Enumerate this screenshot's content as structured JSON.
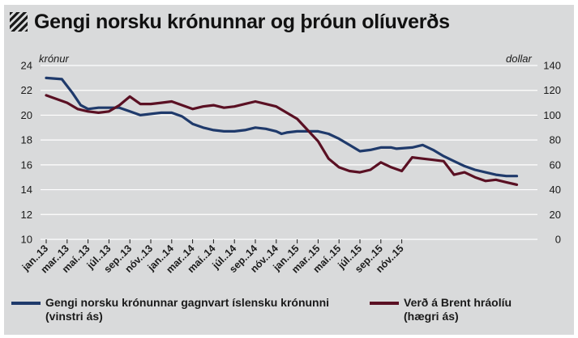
{
  "title": "Gengi norsku krónunnar og þróun olíuverðs",
  "colors": {
    "nok": "#1f3a6b",
    "brent": "#5a1023",
    "background": "#d9dadb",
    "grid": "#ffffff"
  },
  "chart_data": {
    "type": "line",
    "title": "Gengi norsku krónunnar og þróun olíuverðs",
    "left_axis_label": "krónur",
    "right_axis_label": "dollar",
    "left_ylim": [
      10,
      24
    ],
    "right_ylim": [
      0,
      140
    ],
    "left_ticks": [
      "10",
      "12",
      "14",
      "16",
      "18",
      "20",
      "22",
      "24"
    ],
    "right_ticks": [
      "0",
      "20",
      "40",
      "60",
      "80",
      "100",
      "120",
      "140"
    ],
    "grid": true,
    "x_tick_labels": [
      "jan..13",
      "mar..13",
      "maí..13",
      "júl..13",
      "sep..13",
      "nóv..13",
      "jan..14",
      "mar..14",
      "maí..14",
      "júl..14",
      "sep..14",
      "nóv..14",
      "jan..15",
      "mar..15",
      "maí..15",
      "júl..15",
      "sep..15",
      "nóv..15"
    ],
    "series": [
      {
        "name": "Gengi norsku krónunnar gagnvart íslensku krónunni (vinstri ás)",
        "axis": "left",
        "color": "#1f3a6b",
        "points": [
          [
            0,
            23.0
          ],
          [
            1.5,
            22.9
          ],
          [
            2.5,
            21.8
          ],
          [
            3.3,
            20.8
          ],
          [
            4,
            20.5
          ],
          [
            5,
            20.6
          ],
          [
            6,
            20.6
          ],
          [
            7,
            20.6
          ],
          [
            8,
            20.3
          ],
          [
            9,
            20.0
          ],
          [
            10,
            20.1
          ],
          [
            11,
            20.2
          ],
          [
            12,
            20.2
          ],
          [
            13,
            19.9
          ],
          [
            14,
            19.3
          ],
          [
            15,
            19.0
          ],
          [
            16,
            18.8
          ],
          [
            17,
            18.7
          ],
          [
            18,
            18.7
          ],
          [
            19,
            18.8
          ],
          [
            20,
            19.0
          ],
          [
            21,
            18.9
          ],
          [
            22,
            18.7
          ],
          [
            22.5,
            18.5
          ],
          [
            23,
            18.6
          ],
          [
            24,
            18.7
          ],
          [
            25,
            18.7
          ],
          [
            26,
            18.7
          ],
          [
            27,
            18.5
          ],
          [
            28,
            18.1
          ],
          [
            29,
            17.6
          ],
          [
            30,
            17.1
          ],
          [
            31,
            17.2
          ],
          [
            32,
            17.4
          ],
          [
            33,
            17.4
          ],
          [
            33.5,
            17.3
          ],
          [
            35,
            17.4
          ],
          [
            36,
            17.6
          ],
          [
            37,
            17.2
          ],
          [
            38,
            16.7
          ],
          [
            39,
            16.3
          ],
          [
            40,
            15.9
          ],
          [
            41,
            15.6
          ],
          [
            42,
            15.4
          ],
          [
            43,
            15.2
          ],
          [
            44,
            15.1
          ],
          [
            45,
            15.1
          ]
        ]
      },
      {
        "name": "Verð á Brent hráolíu (hægri ás)",
        "axis": "right",
        "color": "#5a1023",
        "points": [
          [
            0,
            116
          ],
          [
            1,
            113
          ],
          [
            2,
            110
          ],
          [
            3,
            105
          ],
          [
            4,
            103
          ],
          [
            5,
            102
          ],
          [
            6,
            103
          ],
          [
            7,
            108
          ],
          [
            8,
            115
          ],
          [
            9,
            109
          ],
          [
            10,
            109
          ],
          [
            11,
            110
          ],
          [
            12,
            111
          ],
          [
            13,
            108
          ],
          [
            14,
            105
          ],
          [
            15,
            107
          ],
          [
            16,
            108
          ],
          [
            17,
            106
          ],
          [
            18,
            107
          ],
          [
            19,
            109
          ],
          [
            20,
            111
          ],
          [
            21,
            109
          ],
          [
            22,
            107
          ],
          [
            23,
            102
          ],
          [
            24,
            97
          ],
          [
            25,
            88
          ],
          [
            26,
            79
          ],
          [
            27,
            65
          ],
          [
            28,
            58
          ],
          [
            29,
            55
          ],
          [
            30,
            54
          ],
          [
            31,
            56
          ],
          [
            32,
            62
          ],
          [
            33,
            58
          ],
          [
            34,
            55
          ],
          [
            35,
            66
          ],
          [
            36,
            65
          ],
          [
            37,
            64
          ],
          [
            38,
            63
          ],
          [
            39,
            52
          ],
          [
            40,
            54
          ],
          [
            41,
            50
          ],
          [
            42,
            47
          ],
          [
            43,
            48
          ],
          [
            44,
            46
          ],
          [
            45,
            44
          ]
        ]
      }
    ]
  },
  "legend": [
    {
      "line1": "Gengi norsku krónunnar gagnvart íslensku krónunni",
      "line2": "(vinstri ás)"
    },
    {
      "line1": "Verð á Brent hráolíu",
      "line2": "(hægri ás)"
    }
  ]
}
